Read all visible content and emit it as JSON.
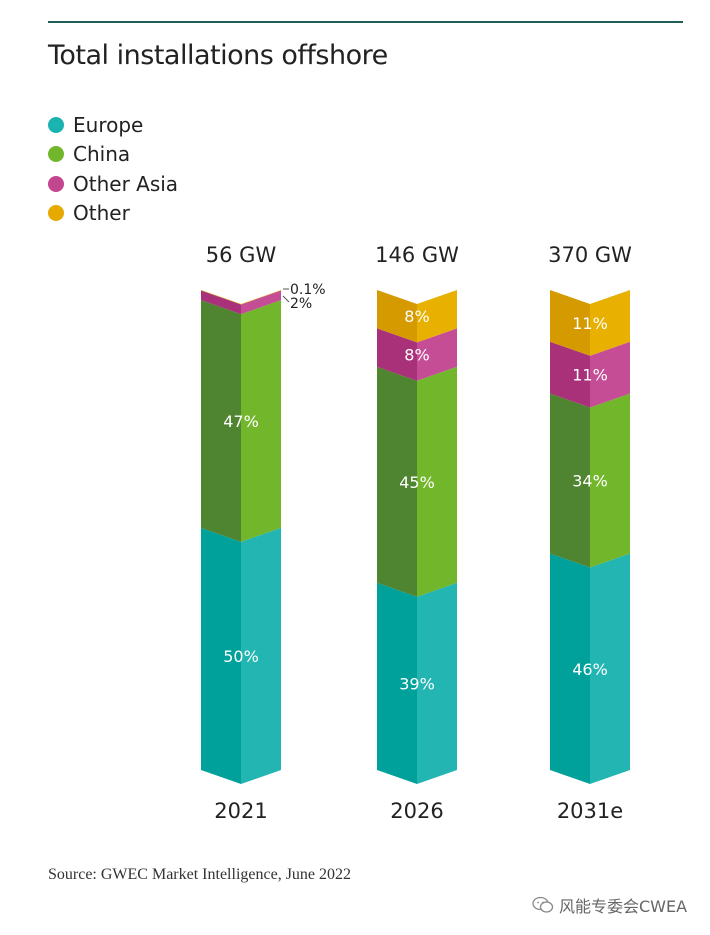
{
  "title": "Total installations offshore",
  "source": "Source: GWEC Market Intelligence, June 2022",
  "watermark": "风能专委会CWEA",
  "legend": [
    {
      "label": "Europe",
      "color": "#1ab3b0"
    },
    {
      "label": "China",
      "color": "#72b62c"
    },
    {
      "label": "Other Asia",
      "color": "#c2458f"
    },
    {
      "label": "Other",
      "color": "#e5a900"
    }
  ],
  "chart_data": {
    "type": "bar",
    "stacked": true,
    "categories": [
      "2021",
      "2026",
      "2031e"
    ],
    "totals": [
      "56 GW",
      "146 GW",
      "370 GW"
    ],
    "series": [
      {
        "name": "Europe",
        "values": [
          50,
          39,
          46
        ],
        "labels": [
          "50%",
          "39%",
          "46%"
        ],
        "color_dark": "#00a09b",
        "color_light": "#22b5b2"
      },
      {
        "name": "China",
        "values": [
          47,
          45,
          34
        ],
        "labels": [
          "47%",
          "45%",
          "34%"
        ],
        "color_dark": "#4f8430",
        "color_light": "#72b62c"
      },
      {
        "name": "Other Asia",
        "values": [
          2,
          8,
          11
        ],
        "labels": [
          "2%",
          "8%",
          "11%"
        ],
        "color_dark": "#a8317a",
        "color_light": "#c54d96"
      },
      {
        "name": "Other",
        "values": [
          0.1,
          8,
          11
        ],
        "labels": [
          "0.1%",
          "8%",
          "11%"
        ],
        "color_dark": "#d49a00",
        "color_light": "#e8b000"
      }
    ]
  }
}
